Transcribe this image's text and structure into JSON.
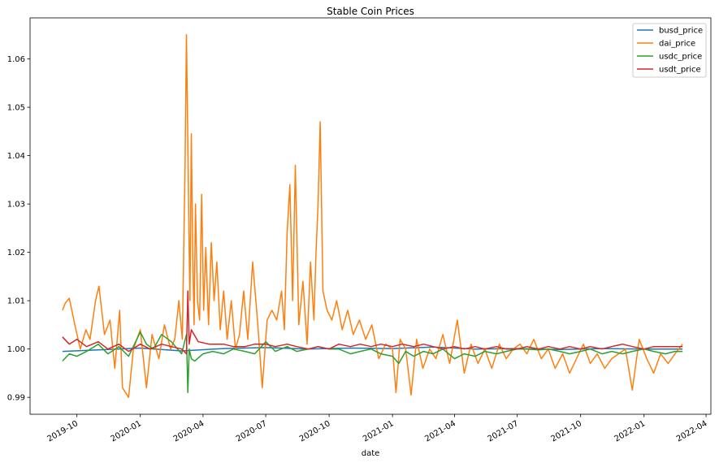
{
  "chart_data": {
    "type": "line",
    "title": "Stable Coin Prices",
    "xlabel": "date",
    "ylabel": "",
    "x_tick_labels": [
      "2019-10",
      "2020-01",
      "2020-04",
      "2020-07",
      "2020-10",
      "2021-01",
      "2021-04",
      "2021-07",
      "2021-10",
      "2022-01",
      "2022-04"
    ],
    "x_range": [
      "2019-07-25",
      "2022-04-08"
    ],
    "y_tick_labels": [
      "0.99",
      "1.00",
      "1.01",
      "1.02",
      "1.03",
      "1.04",
      "1.05",
      "1.06"
    ],
    "ylim": [
      0.9865,
      1.0685
    ],
    "grid": false,
    "legend_position": "top-right",
    "series": [
      {
        "name": "busd_price",
        "color": "#1f77b4",
        "x": [
          "2019-09-10",
          "2019-11-01",
          "2020-01-01",
          "2020-03-01",
          "2020-05-01",
          "2020-07-01",
          "2020-09-01",
          "2020-11-01",
          "2021-01-01",
          "2021-03-01",
          "2021-05-01",
          "2021-07-01",
          "2021-09-01",
          "2021-11-01",
          "2022-01-01",
          "2022-02-26"
        ],
        "y": [
          0.9995,
          0.9998,
          1.0002,
          0.9996,
          1.0001,
          1.0003,
          1.0,
          1.0002,
          1.0001,
          1.0004,
          1.0,
          1.0001,
          0.9999,
          1.0001,
          1.0,
          1.0
        ]
      },
      {
        "name": "dai_price",
        "color": "#ff7f0e",
        "x": [
          "2019-09-10",
          "2019-09-14",
          "2019-09-20",
          "2019-09-28",
          "2019-10-06",
          "2019-10-14",
          "2019-10-20",
          "2019-10-28",
          "2019-11-02",
          "2019-11-10",
          "2019-11-18",
          "2019-11-25",
          "2019-12-02",
          "2019-12-06",
          "2019-12-15",
          "2019-12-22",
          "2020-01-01",
          "2020-01-10",
          "2020-01-18",
          "2020-01-28",
          "2020-02-05",
          "2020-02-14",
          "2020-02-20",
          "2020-02-26",
          "2020-03-02",
          "2020-03-06",
          "2020-03-08",
          "2020-03-10",
          "2020-03-12",
          "2020-03-13",
          "2020-03-15",
          "2020-03-17",
          "2020-03-19",
          "2020-03-21",
          "2020-03-24",
          "2020-03-27",
          "2020-03-30",
          "2020-04-02",
          "2020-04-05",
          "2020-04-09",
          "2020-04-13",
          "2020-04-17",
          "2020-04-21",
          "2020-04-26",
          "2020-05-01",
          "2020-05-06",
          "2020-05-12",
          "2020-05-18",
          "2020-05-24",
          "2020-05-30",
          "2020-06-05",
          "2020-06-12",
          "2020-06-19",
          "2020-06-26",
          "2020-07-03",
          "2020-07-10",
          "2020-07-17",
          "2020-07-24",
          "2020-07-28",
          "2020-08-01",
          "2020-08-05",
          "2020-08-09",
          "2020-08-13",
          "2020-08-18",
          "2020-08-24",
          "2020-08-30",
          "2020-09-04",
          "2020-09-09",
          "2020-09-12",
          "2020-09-15",
          "2020-09-18",
          "2020-09-22",
          "2020-09-28",
          "2020-10-05",
          "2020-10-12",
          "2020-10-20",
          "2020-10-28",
          "2020-11-05",
          "2020-11-14",
          "2020-11-23",
          "2020-12-02",
          "2020-12-12",
          "2020-12-22",
          "2021-01-01",
          "2021-01-06",
          "2021-01-12",
          "2021-01-20",
          "2021-01-28",
          "2021-02-05",
          "2021-02-14",
          "2021-02-24",
          "2021-03-05",
          "2021-03-15",
          "2021-03-25",
          "2021-04-05",
          "2021-04-15",
          "2021-04-25",
          "2021-05-05",
          "2021-05-15",
          "2021-05-25",
          "2021-06-05",
          "2021-06-15",
          "2021-06-25",
          "2021-07-05",
          "2021-07-15",
          "2021-07-25",
          "2021-08-05",
          "2021-08-15",
          "2021-08-25",
          "2021-09-05",
          "2021-09-15",
          "2021-09-25",
          "2021-10-05",
          "2021-10-15",
          "2021-10-25",
          "2021-11-05",
          "2021-11-15",
          "2021-11-25",
          "2021-12-05",
          "2021-12-15",
          "2021-12-25",
          "2022-01-05",
          "2022-01-15",
          "2022-01-25",
          "2022-02-05",
          "2022-02-15",
          "2022-02-26"
        ],
        "y": [
          1.008,
          1.0095,
          1.0105,
          1.005,
          1.0,
          1.004,
          1.002,
          1.01,
          1.013,
          1.003,
          1.006,
          0.996,
          1.008,
          0.992,
          0.99,
          1.0,
          1.004,
          0.992,
          1.003,
          0.998,
          1.005,
          1.0,
          1.002,
          1.01,
          1.002,
          1.038,
          1.065,
          1.043,
          1.02,
          1.01,
          1.0445,
          1.02,
          1.005,
          1.03,
          1.01,
          1.006,
          1.032,
          1.008,
          1.021,
          1.005,
          1.022,
          1.01,
          1.018,
          1.004,
          1.012,
          1.002,
          1.01,
          1.0,
          1.003,
          1.012,
          1.002,
          1.018,
          1.006,
          0.992,
          1.006,
          1.008,
          1.006,
          1.012,
          1.004,
          1.024,
          1.034,
          1.01,
          1.038,
          1.005,
          1.014,
          1.001,
          1.018,
          1.006,
          1.02,
          1.03,
          1.047,
          1.012,
          1.008,
          1.006,
          1.01,
          1.004,
          1.008,
          1.003,
          1.006,
          1.002,
          1.005,
          0.998,
          1.001,
          1.0,
          0.991,
          1.002,
          1.0,
          0.9905,
          1.002,
          0.996,
          1.0,
          0.998,
          1.003,
          0.997,
          1.006,
          0.995,
          1.001,
          0.997,
          1.0,
          0.996,
          1.001,
          0.998,
          1.0,
          1.001,
          0.999,
          1.002,
          0.998,
          1.0,
          0.996,
          0.999,
          0.995,
          0.998,
          1.001,
          0.997,
          0.999,
          0.996,
          0.998,
          0.999,
          1.0,
          0.9915,
          1.002,
          0.998,
          0.995,
          0.999,
          0.997,
          0.999,
          1.001
        ]
      },
      {
        "name": "usdc_price",
        "color": "#2ca02c",
        "x": [
          "2019-09-10",
          "2019-09-20",
          "2019-10-01",
          "2019-10-15",
          "2019-11-01",
          "2019-11-15",
          "2019-12-01",
          "2019-12-15",
          "2020-01-01",
          "2020-01-10",
          "2020-01-20",
          "2020-02-01",
          "2020-02-15",
          "2020-03-01",
          "2020-03-08",
          "2020-03-10",
          "2020-03-12",
          "2020-03-15",
          "2020-03-20",
          "2020-04-01",
          "2020-04-15",
          "2020-05-01",
          "2020-05-15",
          "2020-06-01",
          "2020-06-15",
          "2020-07-01",
          "2020-07-15",
          "2020-08-01",
          "2020-08-15",
          "2020-09-01",
          "2020-09-15",
          "2020-10-01",
          "2020-10-15",
          "2020-11-01",
          "2020-11-15",
          "2020-12-01",
          "2020-12-15",
          "2021-01-01",
          "2021-01-10",
          "2021-01-20",
          "2021-02-01",
          "2021-02-15",
          "2021-03-01",
          "2021-03-15",
          "2021-04-01",
          "2021-04-15",
          "2021-05-01",
          "2021-05-15",
          "2021-06-01",
          "2021-06-15",
          "2021-07-01",
          "2021-07-15",
          "2021-08-01",
          "2021-08-15",
          "2021-09-01",
          "2021-09-15",
          "2021-10-01",
          "2021-10-15",
          "2021-11-01",
          "2021-11-15",
          "2021-12-01",
          "2021-12-15",
          "2022-01-01",
          "2022-01-15",
          "2022-02-01",
          "2022-02-15",
          "2022-02-26"
        ],
        "y": [
          0.9975,
          0.999,
          0.9985,
          0.9995,
          1.001,
          0.999,
          1.0005,
          0.9985,
          1.0035,
          1.001,
          1.0,
          1.003,
          1.0015,
          0.999,
          1.003,
          0.991,
          1.0,
          0.998,
          0.9975,
          0.999,
          0.9995,
          0.999,
          1.0,
          0.9995,
          0.999,
          1.0015,
          0.9995,
          1.0005,
          0.9995,
          1.0,
          1.0005,
          1.0,
          1.0,
          0.999,
          0.9995,
          1.0,
          0.999,
          0.9985,
          0.997,
          0.9995,
          0.9985,
          0.9995,
          0.999,
          1.0,
          0.998,
          0.999,
          0.9985,
          0.9995,
          0.999,
          0.9995,
          1.0,
          1.0,
          0.9998,
          1.0,
          0.9995,
          0.999,
          0.9995,
          1.0,
          0.999,
          0.9995,
          0.999,
          0.9995,
          1.0,
          0.9995,
          0.999,
          0.9995,
          0.9995
        ]
      },
      {
        "name": "usdt_price",
        "color": "#d62728",
        "x": [
          "2019-09-10",
          "2019-09-20",
          "2019-10-01",
          "2019-10-15",
          "2019-11-01",
          "2019-11-15",
          "2019-12-01",
          "2019-12-15",
          "2020-01-01",
          "2020-01-15",
          "2020-02-01",
          "2020-02-15",
          "2020-03-01",
          "2020-03-08",
          "2020-03-10",
          "2020-03-12",
          "2020-03-15",
          "2020-03-25",
          "2020-04-10",
          "2020-05-01",
          "2020-05-15",
          "2020-06-01",
          "2020-06-15",
          "2020-07-01",
          "2020-07-15",
          "2020-08-01",
          "2020-08-15",
          "2020-09-01",
          "2020-09-15",
          "2020-10-01",
          "2020-10-15",
          "2020-11-01",
          "2020-11-15",
          "2020-12-01",
          "2020-12-15",
          "2021-01-01",
          "2021-01-15",
          "2021-02-01",
          "2021-02-15",
          "2021-03-01",
          "2021-03-15",
          "2021-04-01",
          "2021-04-15",
          "2021-05-01",
          "2021-05-15",
          "2021-06-01",
          "2021-06-15",
          "2021-07-01",
          "2021-07-15",
          "2021-08-01",
          "2021-08-15",
          "2021-09-01",
          "2021-09-15",
          "2021-10-01",
          "2021-10-15",
          "2021-11-01",
          "2021-11-15",
          "2021-12-01",
          "2021-12-15",
          "2022-01-01",
          "2022-01-15",
          "2022-02-01",
          "2022-02-15",
          "2022-02-26"
        ],
        "y": [
          1.0025,
          1.001,
          1.002,
          1.0005,
          1.0015,
          1.0,
          1.001,
          0.9995,
          1.001,
          1.0,
          1.001,
          1.0005,
          1.0,
          0.999,
          1.012,
          1.001,
          1.004,
          1.0015,
          1.001,
          1.001,
          1.0005,
          1.0005,
          1.001,
          1.001,
          1.0005,
          1.001,
          1.0005,
          1.0,
          1.0005,
          1.0,
          1.001,
          1.0005,
          1.001,
          1.0005,
          1.001,
          1.0005,
          1.001,
          1.0005,
          1.001,
          1.0005,
          1.0,
          1.0005,
          1.0,
          1.0005,
          1.0,
          1.0005,
          1.0,
          1.0,
          1.0005,
          1.0,
          1.0005,
          1.0,
          1.0005,
          1.0,
          1.0005,
          1.0,
          1.0005,
          1.001,
          1.0005,
          1.0,
          1.0005,
          1.0005,
          1.0005,
          1.0005
        ]
      }
    ]
  }
}
